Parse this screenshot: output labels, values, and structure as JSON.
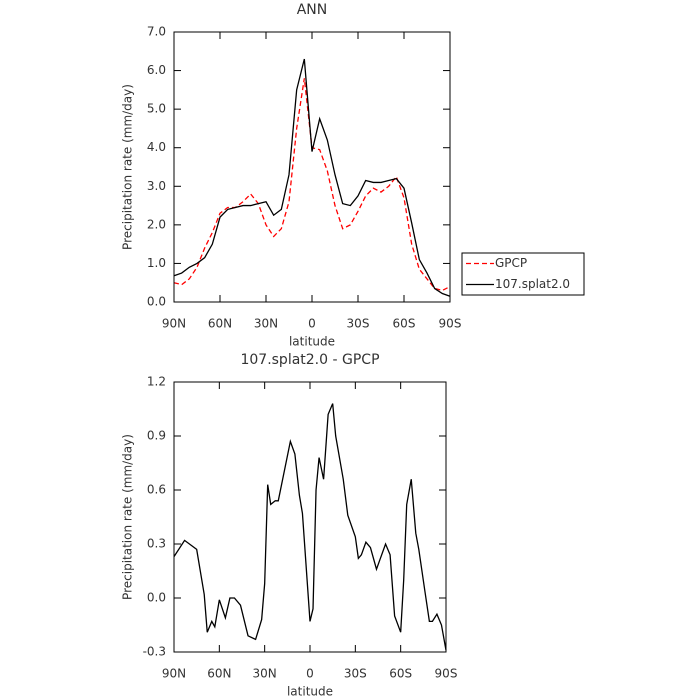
{
  "chart_data": [
    {
      "type": "line",
      "title": "ANN",
      "x_label": "latitude",
      "y_label": "Precipitation rate (mm/day)",
      "x": [
        90,
        85,
        80,
        75,
        70,
        65,
        60,
        55,
        50,
        45,
        40,
        35,
        30,
        25,
        20,
        15,
        10,
        5,
        0,
        -5,
        -10,
        -15,
        -20,
        -25,
        -30,
        -35,
        -40,
        -45,
        -50,
        -55,
        -60,
        -65,
        -70,
        -75,
        -80,
        -85,
        -90
      ],
      "xlim": [
        90,
        -90
      ],
      "xticks": [
        {
          "value": 90,
          "label": "90N"
        },
        {
          "value": 60,
          "label": "60N"
        },
        {
          "value": 30,
          "label": "30N"
        },
        0,
        {
          "value": -30,
          "label": "30S"
        },
        {
          "value": -60,
          "label": "60S"
        },
        {
          "value": -90,
          "label": "90S"
        }
      ],
      "ylim": [
        0,
        7
      ],
      "yticks": [
        {
          "value": 0,
          "label": "0.0"
        },
        {
          "value": 1,
          "label": "1.0"
        },
        {
          "value": 2,
          "label": "2.0"
        },
        {
          "value": 3,
          "label": "3.0"
        },
        {
          "value": 4,
          "label": "4.0"
        },
        {
          "value": 5,
          "label": "5.0"
        },
        {
          "value": 6,
          "label": "6.0"
        },
        {
          "value": 7,
          "label": "7.0"
        }
      ],
      "legend": "right",
      "series": [
        {
          "name": "GPCP",
          "color": "#ff0000",
          "line_style": "dashed",
          "values": [
            0.5,
            0.45,
            0.6,
            0.9,
            1.4,
            1.8,
            2.3,
            2.45,
            2.45,
            2.6,
            2.8,
            2.55,
            2.0,
            1.7,
            1.9,
            2.6,
            4.5,
            5.8,
            4.0,
            3.95,
            3.4,
            2.5,
            1.9,
            2.0,
            2.35,
            2.75,
            2.95,
            2.85,
            3.0,
            3.25,
            2.7,
            1.5,
            0.85,
            0.6,
            0.35,
            0.3,
            0.4
          ]
        },
        {
          "name": "107.splat2.0",
          "color": "#000000",
          "line_style": "solid",
          "values": [
            0.68,
            0.75,
            0.9,
            1.0,
            1.15,
            1.5,
            2.2,
            2.4,
            2.45,
            2.5,
            2.5,
            2.55,
            2.6,
            2.25,
            2.4,
            3.3,
            5.5,
            6.3,
            3.9,
            4.75,
            4.2,
            3.3,
            2.55,
            2.5,
            2.75,
            3.15,
            3.1,
            3.1,
            3.15,
            3.2,
            2.95,
            2.05,
            1.1,
            0.75,
            0.35,
            0.22,
            0.15
          ]
        }
      ]
    },
    {
      "type": "line",
      "title": "107.splat2.0 - GPCP",
      "x_label": "latitude",
      "y_label": "Precipitation rate (mm/day)",
      "x": [
        90,
        83,
        75,
        70,
        68,
        65,
        63,
        60,
        56,
        53,
        50,
        46,
        41,
        36,
        32,
        30,
        28,
        26,
        23,
        21,
        13,
        10,
        7,
        5,
        0,
        -2,
        -4,
        -6,
        -9,
        -12,
        -15,
        -17,
        -22,
        -25,
        -30,
        -32,
        -34,
        -37,
        -40,
        -44,
        -50,
        -53,
        -56,
        -60,
        -62,
        -64,
        -67,
        -70,
        -72,
        -76,
        -79,
        -81,
        -84,
        -87,
        -90
      ],
      "values": [
        0.23,
        0.32,
        0.27,
        0.02,
        -0.19,
        -0.13,
        -0.16,
        -0.01,
        -0.11,
        0.0,
        0.0,
        -0.04,
        -0.21,
        -0.23,
        -0.12,
        0.08,
        0.63,
        0.52,
        0.54,
        0.54,
        0.87,
        0.8,
        0.57,
        0.47,
        -0.13,
        -0.06,
        0.6,
        0.78,
        0.66,
        1.02,
        1.08,
        0.9,
        0.66,
        0.46,
        0.34,
        0.22,
        0.24,
        0.31,
        0.28,
        0.16,
        0.3,
        0.24,
        -0.1,
        -0.19,
        0.1,
        0.52,
        0.66,
        0.36,
        0.27,
        0.04,
        -0.13,
        -0.13,
        -0.09,
        -0.15,
        -0.29
      ],
      "color": "#000000",
      "xlim": [
        90,
        -90
      ],
      "xticks": [
        {
          "value": 90,
          "label": "90N"
        },
        {
          "value": 60,
          "label": "60N"
        },
        {
          "value": 30,
          "label": "30N"
        },
        0,
        {
          "value": -30,
          "label": "30S"
        },
        {
          "value": -60,
          "label": "60S"
        },
        {
          "value": -90,
          "label": "90S"
        }
      ],
      "ylim": [
        -0.3,
        1.2
      ],
      "yticks": [
        -0.3,
        {
          "value": 0,
          "label": "0.0"
        },
        0.3,
        0.6,
        0.9,
        1.2
      ]
    }
  ]
}
